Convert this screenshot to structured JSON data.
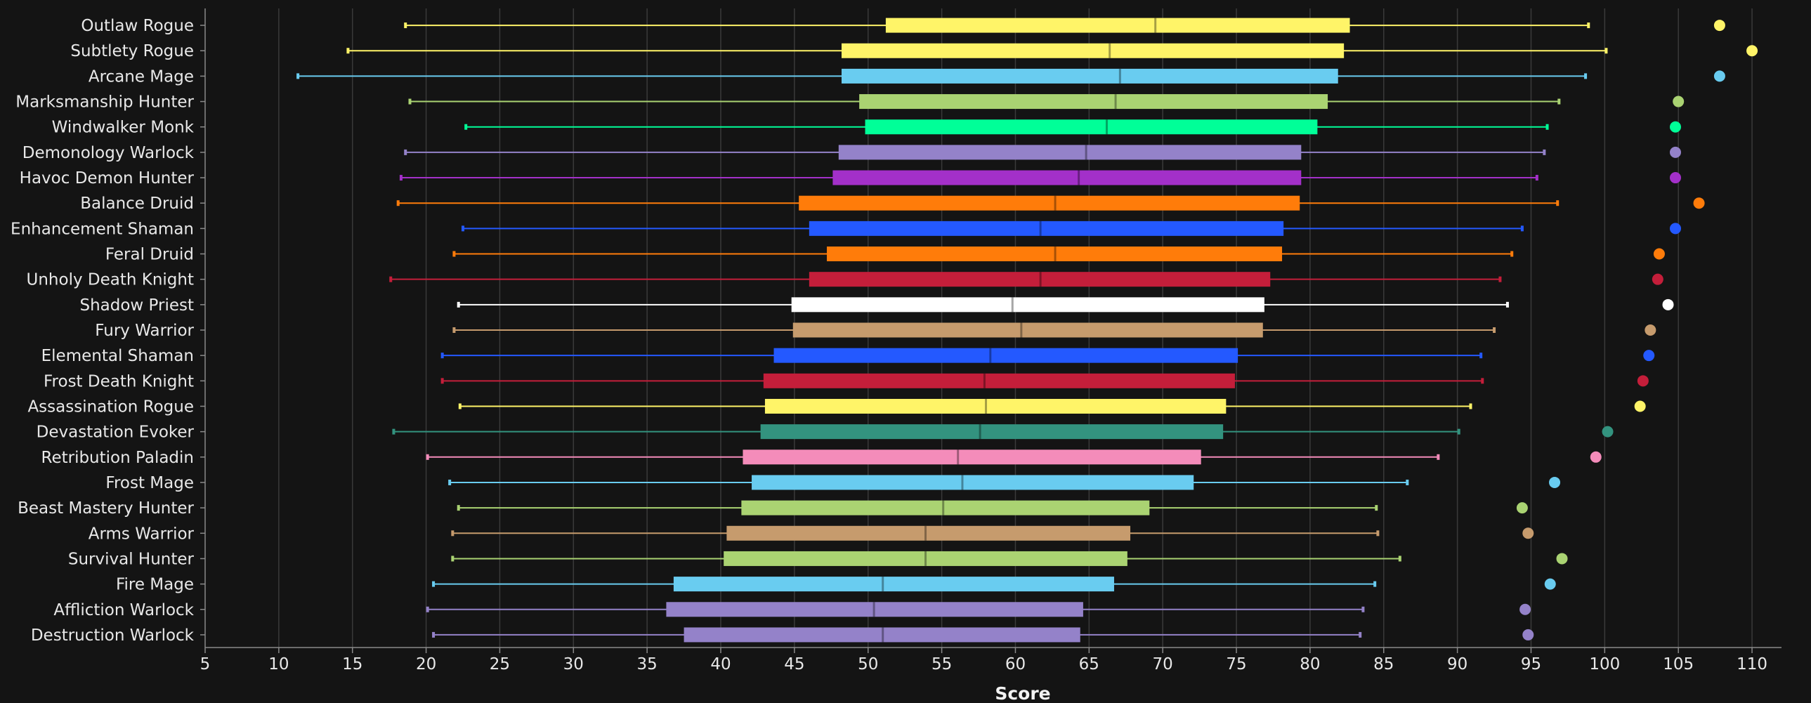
{
  "chart_data": {
    "type": "box",
    "xlabel": "Score",
    "xlim": [
      5,
      112
    ],
    "xticks": [
      5,
      10,
      15,
      20,
      25,
      30,
      35,
      40,
      45,
      50,
      55,
      60,
      65,
      70,
      75,
      80,
      85,
      90,
      95,
      100,
      105,
      110
    ],
    "grid": true,
    "categories": [
      {
        "label": "Outlaw Rogue",
        "color": "#FFF468",
        "min": 18.6,
        "q1": 51.2,
        "median": 69.5,
        "q3": 82.7,
        "max": 98.9,
        "outlier": 107.8
      },
      {
        "label": "Subtlety Rogue",
        "color": "#FFF468",
        "min": 14.7,
        "q1": 48.2,
        "median": 66.4,
        "q3": 82.3,
        "max": 100.1,
        "outlier": 110.0
      },
      {
        "label": "Arcane Mage",
        "color": "#69CCF0",
        "min": 11.3,
        "q1": 48.2,
        "median": 67.1,
        "q3": 81.9,
        "max": 98.7,
        "outlier": 107.8
      },
      {
        "label": "Marksmanship Hunter",
        "color": "#AAD372",
        "min": 18.9,
        "q1": 49.4,
        "median": 66.8,
        "q3": 81.2,
        "max": 96.9,
        "outlier": 105.0
      },
      {
        "label": "Windwalker Monk",
        "color": "#00FF98",
        "min": 22.7,
        "q1": 49.8,
        "median": 66.2,
        "q3": 80.5,
        "max": 96.1,
        "outlier": 104.8
      },
      {
        "label": "Demonology Warlock",
        "color": "#9482C9",
        "min": 18.6,
        "q1": 48.0,
        "median": 64.8,
        "q3": 79.4,
        "max": 95.9,
        "outlier": 104.8
      },
      {
        "label": "Havoc Demon Hunter",
        "color": "#A330C9",
        "min": 18.3,
        "q1": 47.6,
        "median": 64.3,
        "q3": 79.4,
        "max": 95.4,
        "outlier": 104.8
      },
      {
        "label": "Balance Druid",
        "color": "#FF7C0A",
        "min": 18.1,
        "q1": 45.3,
        "median": 62.7,
        "q3": 79.3,
        "max": 96.8,
        "outlier": 106.4
      },
      {
        "label": "Enhancement Shaman",
        "color": "#2459FF",
        "min": 22.5,
        "q1": 46.0,
        "median": 61.7,
        "q3": 78.2,
        "max": 94.4,
        "outlier": 104.8
      },
      {
        "label": "Feral Druid",
        "color": "#FF7C0A",
        "min": 21.9,
        "q1": 47.2,
        "median": 62.7,
        "q3": 78.1,
        "max": 93.7,
        "outlier": 103.7
      },
      {
        "label": "Unholy Death Knight",
        "color": "#C41E3A",
        "min": 17.6,
        "q1": 46.0,
        "median": 61.7,
        "q3": 77.3,
        "max": 92.9,
        "outlier": 103.6
      },
      {
        "label": "Shadow Priest",
        "color": "#FFFFFF",
        "min": 22.2,
        "q1": 44.8,
        "median": 59.8,
        "q3": 76.9,
        "max": 93.4,
        "outlier": 104.3
      },
      {
        "label": "Fury Warrior",
        "color": "#C69B6D",
        "min": 21.9,
        "q1": 44.9,
        "median": 60.4,
        "q3": 76.8,
        "max": 92.5,
        "outlier": 103.1
      },
      {
        "label": "Elemental Shaman",
        "color": "#2459FF",
        "min": 21.1,
        "q1": 43.6,
        "median": 58.3,
        "q3": 75.1,
        "max": 91.6,
        "outlier": 103.0
      },
      {
        "label": "Frost Death Knight",
        "color": "#C41E3A",
        "min": 21.1,
        "q1": 42.9,
        "median": 57.9,
        "q3": 74.9,
        "max": 91.7,
        "outlier": 102.6
      },
      {
        "label": "Assassination Rogue",
        "color": "#FFF468",
        "min": 22.3,
        "q1": 43.0,
        "median": 58.0,
        "q3": 74.3,
        "max": 90.9,
        "outlier": 102.4
      },
      {
        "label": "Devastation Evoker",
        "color": "#33937F",
        "min": 17.8,
        "q1": 42.7,
        "median": 57.6,
        "q3": 74.1,
        "max": 90.1,
        "outlier": 100.2
      },
      {
        "label": "Retribution Paladin",
        "color": "#F48CBA",
        "min": 20.1,
        "q1": 41.5,
        "median": 56.1,
        "q3": 72.6,
        "max": 88.7,
        "outlier": 99.4
      },
      {
        "label": "Frost Mage",
        "color": "#69CCF0",
        "min": 21.6,
        "q1": 42.1,
        "median": 56.4,
        "q3": 72.1,
        "max": 86.6,
        "outlier": 96.6
      },
      {
        "label": "Beast Mastery Hunter",
        "color": "#AAD372",
        "min": 22.2,
        "q1": 41.4,
        "median": 55.1,
        "q3": 69.1,
        "max": 84.5,
        "outlier": 94.4
      },
      {
        "label": "Arms Warrior",
        "color": "#C69B6D",
        "min": 21.8,
        "q1": 40.4,
        "median": 53.9,
        "q3": 67.8,
        "max": 84.6,
        "outlier": 94.8
      },
      {
        "label": "Survival Hunter",
        "color": "#AAD372",
        "min": 21.8,
        "q1": 40.2,
        "median": 53.9,
        "q3": 67.6,
        "max": 86.1,
        "outlier": 97.1
      },
      {
        "label": "Fire Mage",
        "color": "#69CCF0",
        "min": 20.5,
        "q1": 36.8,
        "median": 51.0,
        "q3": 66.7,
        "max": 84.4,
        "outlier": 96.3
      },
      {
        "label": "Affliction Warlock",
        "color": "#9482C9",
        "min": 20.1,
        "q1": 36.3,
        "median": 50.4,
        "q3": 64.6,
        "max": 83.6,
        "outlier": 94.6
      },
      {
        "label": "Destruction Warlock",
        "color": "#9482C9",
        "min": 20.5,
        "q1": 37.5,
        "median": 51.0,
        "q3": 64.4,
        "max": 83.4,
        "outlier": 94.8
      }
    ]
  }
}
